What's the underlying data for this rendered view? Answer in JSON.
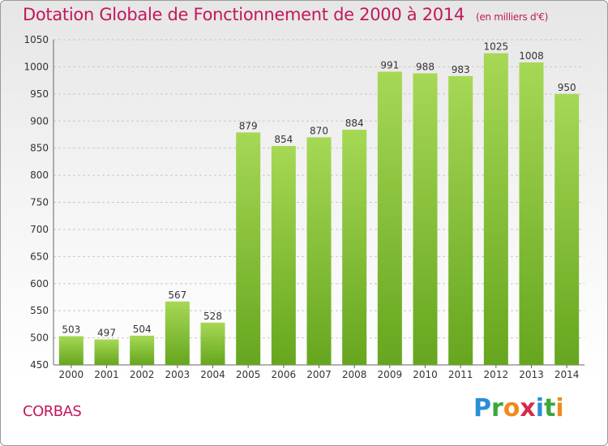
{
  "title": "Dotation Globale de Fonctionnement de 2000 à 2014",
  "subtitle": "(en milliers d'€)",
  "commune": "CORBAS",
  "brand": {
    "letters": [
      "P",
      "r",
      "o",
      "x",
      "i",
      "t",
      "i"
    ],
    "colors": [
      "#2a8fd6",
      "#3aa83a",
      "#f08a1c",
      "#d62a4a",
      "#2a8fd6",
      "#3aa83a",
      "#f08a1c"
    ]
  },
  "colors": {
    "bar": "#7fbf2a",
    "bar_light": "#a6d855",
    "accent": "#c2185b"
  },
  "chart_data": {
    "type": "bar",
    "title": "Dotation Globale de Fonctionnement de 2000 à 2014",
    "subtitle": "(en milliers d'€)",
    "categories": [
      "2000",
      "2001",
      "2002",
      "2003",
      "2004",
      "2005",
      "2006",
      "2007",
      "2008",
      "2009",
      "2010",
      "2011",
      "2012",
      "2013",
      "2014"
    ],
    "values": [
      503,
      497,
      504,
      567,
      528,
      879,
      854,
      870,
      884,
      991,
      988,
      983,
      1025,
      1008,
      950
    ],
    "ylim": [
      450,
      1050
    ],
    "yticks": [
      450,
      500,
      550,
      600,
      650,
      700,
      750,
      800,
      850,
      900,
      950,
      1000,
      1050
    ],
    "grid": "horizontal dashed"
  }
}
